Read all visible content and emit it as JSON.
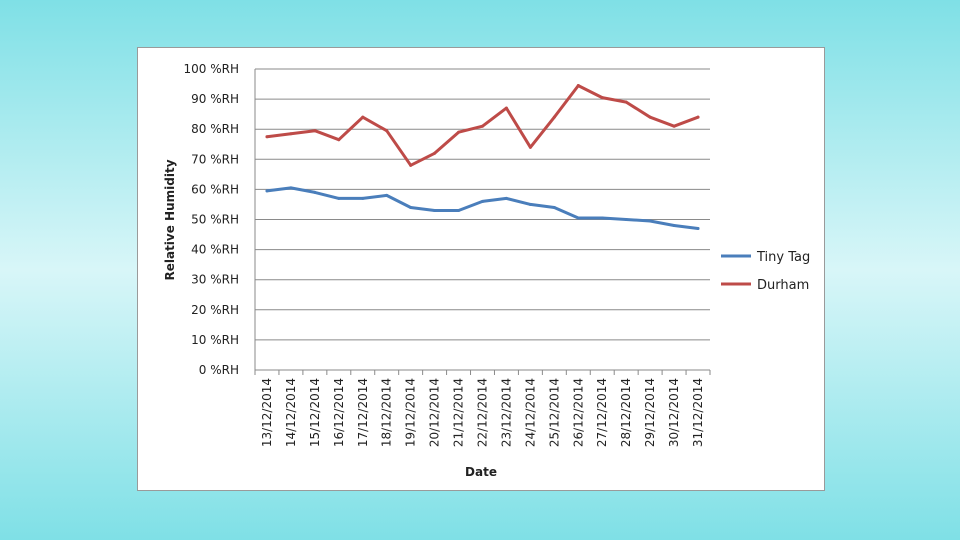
{
  "chart_data": {
    "type": "line",
    "title": "",
    "xlabel": "Date",
    "ylabel": "Relative Humidity",
    "ylim": [
      0,
      100
    ],
    "y_ticks": [
      "0 %RH",
      "10 %RH",
      "20 %RH",
      "30 %RH",
      "40 %RH",
      "50 %RH",
      "60 %RH",
      "70 %RH",
      "80 %RH",
      "90 %RH",
      "100 %RH"
    ],
    "y_tick_values": [
      0,
      10,
      20,
      30,
      40,
      50,
      60,
      70,
      80,
      90,
      100
    ],
    "categories": [
      "13/12/2014",
      "14/12/2014",
      "15/12/2014",
      "16/12/2014",
      "17/12/2014",
      "18/12/2014",
      "19/12/2014",
      "20/12/2014",
      "21/12/2014",
      "22/12/2014",
      "23/12/2014",
      "24/12/2014",
      "25/12/2014",
      "26/12/2014",
      "27/12/2014",
      "28/12/2014",
      "29/12/2014",
      "30/12/2014",
      "31/12/2014"
    ],
    "grid": true,
    "legend_position": "right",
    "series": [
      {
        "name": "Tiny Tag",
        "color": "#4a7ebb",
        "values": [
          59.5,
          60.5,
          59,
          57,
          57,
          58,
          54,
          53,
          53,
          56,
          57,
          55,
          54,
          50.5,
          50.5,
          50,
          49.5,
          48,
          47
        ]
      },
      {
        "name": "Durham",
        "color": "#be4b48",
        "values": [
          77.5,
          78.5,
          79.5,
          76.5,
          84,
          79.5,
          68,
          72,
          79,
          81,
          87,
          74,
          84,
          94.5,
          90.5,
          89,
          84,
          81,
          84
        ]
      }
    ]
  }
}
